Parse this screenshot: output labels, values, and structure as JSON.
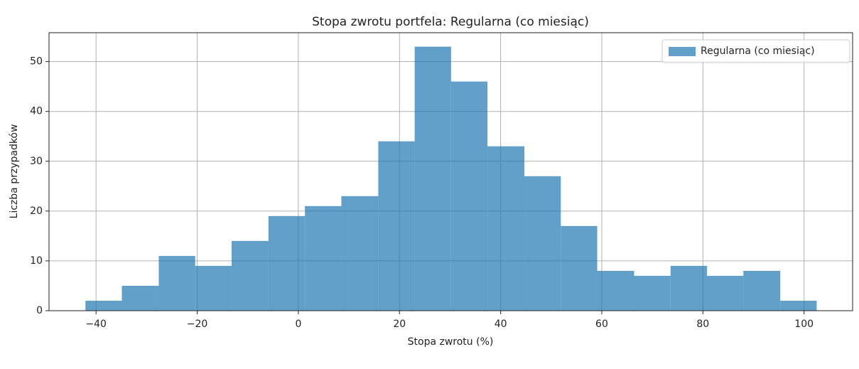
{
  "chart_data": {
    "type": "histogram",
    "title": "Stopa zwrotu portfela: Regularna (co miesiąc)",
    "xlabel": "Stopa zwrotu (%)",
    "ylabel": "Liczba przypadków",
    "bins": [
      -42.1,
      -34.9,
      -27.6,
      -20.4,
      -13.2,
      -5.9,
      1.3,
      8.5,
      15.8,
      23.0,
      30.2,
      37.4,
      44.7,
      51.9,
      59.1,
      66.4,
      73.6,
      80.8,
      88.0,
      95.3,
      102.5
    ],
    "series": [
      {
        "name": "Regularna (co miesiąc)",
        "color": "#1f77b4",
        "alpha": 0.7,
        "values": [
          2,
          5,
          11,
          9,
          14,
          19,
          21,
          23,
          34,
          53,
          46,
          33,
          27,
          17,
          8,
          7,
          9,
          7,
          8,
          2
        ]
      }
    ],
    "xlim": [
      -49.3,
      109.6
    ],
    "ylim": [
      0,
      55.8
    ],
    "xticks": [
      {
        "value": -40,
        "label": "−40"
      },
      {
        "value": -20,
        "label": "−20"
      },
      0,
      20,
      40,
      60,
      80,
      100
    ],
    "yticks": [
      0,
      10,
      20,
      30,
      40,
      50
    ],
    "grid": true,
    "legend": "upper right"
  }
}
